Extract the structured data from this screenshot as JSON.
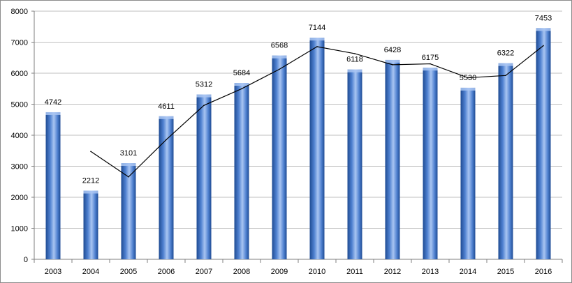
{
  "chart_data": {
    "type": "bar",
    "title": "",
    "xlabel": "",
    "ylabel": "",
    "categories": [
      "2003",
      "2004",
      "2005",
      "2006",
      "2007",
      "2008",
      "2009",
      "2010",
      "2011",
      "2012",
      "2013",
      "2014",
      "2015",
      "2016"
    ],
    "series": [
      {
        "type": "bar",
        "values": [
          4742,
          2212,
          3101,
          4611,
          5312,
          5684,
          6568,
          7144,
          6118,
          6428,
          6175,
          5530,
          6322,
          7453
        ],
        "data_labels": [
          "4742",
          "2212",
          "3101",
          "4611",
          "5312",
          "5684",
          "6568",
          "7144",
          "6118",
          "6428",
          "6175",
          "5530",
          "6322",
          "7453"
        ]
      },
      {
        "type": "line",
        "x": [
          "2004",
          "2005",
          "2006",
          "2007",
          "2008",
          "2009",
          "2010",
          "2011",
          "2012",
          "2013",
          "2014",
          "2015",
          "2016"
        ],
        "values": [
          3477,
          2657,
          3856,
          4962,
          5498,
          6126,
          6856,
          6631,
          6273,
          6302,
          5853,
          5926,
          6888
        ]
      }
    ],
    "ylim": [
      0,
      8000
    ],
    "yticks": [
      "0",
      "1000",
      "2000",
      "3000",
      "4000",
      "5000",
      "6000",
      "7000",
      "8000"
    ],
    "grid": true,
    "legend": "none",
    "colors": {
      "bar_light": "#a9c5f2",
      "bar_mid": "#4f81d0",
      "bar_dark": "#1f4b93",
      "grid": "#bfbfbf",
      "axis": "#7f7f7f",
      "line": "#000000"
    }
  }
}
